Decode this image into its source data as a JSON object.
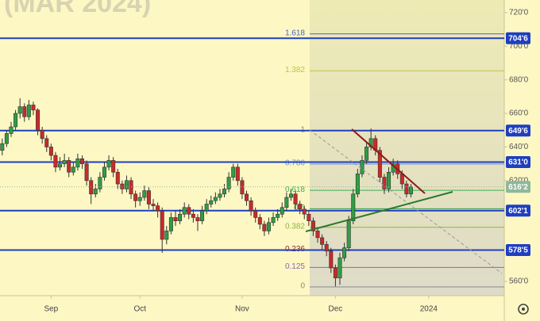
{
  "chart_data": {
    "type": "candlestick",
    "title": "(MAR 2024)",
    "ylim": [
      551.5,
      727.5
    ],
    "yticks": [
      {
        "value": 560,
        "label": "560'0"
      },
      {
        "value": 620,
        "label": "620'0"
      },
      {
        "value": 640,
        "label": "640'0"
      },
      {
        "value": 660,
        "label": "660'0"
      },
      {
        "value": 680,
        "label": "680'0"
      },
      {
        "value": 700,
        "label": "700'0"
      },
      {
        "value": 720,
        "label": "720'0"
      }
    ],
    "xlim": [
      -0.5,
      113
    ],
    "xticks": [
      {
        "value": 11,
        "label": "Sep"
      },
      {
        "value": 31,
        "label": "Oct"
      },
      {
        "value": 54,
        "label": "Nov"
      },
      {
        "value": 75,
        "label": "Dec"
      },
      {
        "value": 96,
        "label": "2024"
      }
    ],
    "up_color": "#2f9e44",
    "down_color": "#c92a2a",
    "candles": [
      [
        638,
        645,
        635,
        642
      ],
      [
        642,
        650,
        640,
        648
      ],
      [
        648,
        655,
        646,
        652
      ],
      [
        652,
        662,
        650,
        660
      ],
      [
        660,
        669,
        657,
        664
      ],
      [
        664,
        666,
        655,
        658
      ],
      [
        658,
        668,
        656,
        665
      ],
      [
        665,
        667,
        659,
        662
      ],
      [
        662,
        663,
        647,
        650
      ],
      [
        650,
        652,
        642,
        645
      ],
      [
        645,
        647,
        637,
        640
      ],
      [
        640,
        642,
        632,
        635
      ],
      [
        635,
        637,
        625,
        628
      ],
      [
        628,
        634,
        626,
        630
      ],
      [
        630,
        636,
        628,
        632
      ],
      [
        632,
        634,
        622,
        625
      ],
      [
        625,
        631,
        623,
        628
      ],
      [
        628,
        636,
        626,
        633
      ],
      [
        633,
        635,
        627,
        630
      ],
      [
        630,
        632,
        617,
        620
      ],
      [
        620,
        622,
        606,
        612
      ],
      [
        612,
        618,
        610,
        615
      ],
      [
        615,
        625,
        613,
        622
      ],
      [
        622,
        631,
        620,
        628
      ],
      [
        628,
        635,
        626,
        632
      ],
      [
        632,
        634,
        622,
        625
      ],
      [
        625,
        627,
        615,
        618
      ],
      [
        618,
        620,
        612,
        615
      ],
      [
        615,
        623,
        613,
        620
      ],
      [
        620,
        622,
        609,
        612
      ],
      [
        612,
        614,
        604,
        608
      ],
      [
        608,
        613,
        605,
        610
      ],
      [
        610,
        617,
        608,
        614
      ],
      [
        614,
        616,
        603,
        606
      ],
      [
        606,
        609,
        602,
        605
      ],
      [
        605,
        607,
        598,
        602
      ],
      [
        602,
        604,
        577,
        585
      ],
      [
        585,
        593,
        582,
        590
      ],
      [
        590,
        601,
        588,
        598
      ],
      [
        598,
        602,
        593,
        596
      ],
      [
        596,
        603,
        594,
        600
      ],
      [
        600,
        607,
        598,
        604
      ],
      [
        604,
        606,
        597,
        600
      ],
      [
        600,
        603,
        595,
        598
      ],
      [
        598,
        600,
        590,
        596
      ],
      [
        596,
        605,
        594,
        602
      ],
      [
        602,
        609,
        600,
        606
      ],
      [
        606,
        611,
        604,
        608
      ],
      [
        608,
        613,
        606,
        610
      ],
      [
        610,
        615,
        608,
        612
      ],
      [
        612,
        618,
        610,
        615
      ],
      [
        615,
        625,
        613,
        622
      ],
      [
        622,
        630,
        620,
        628
      ],
      [
        628,
        630,
        617,
        620
      ],
      [
        620,
        622,
        609,
        612
      ],
      [
        612,
        614,
        605,
        608
      ],
      [
        608,
        610,
        599,
        602
      ],
      [
        602,
        604,
        595,
        598
      ],
      [
        598,
        600,
        591,
        594
      ],
      [
        594,
        596,
        587,
        590
      ],
      [
        590,
        598,
        588,
        595
      ],
      [
        595,
        601,
        593,
        598
      ],
      [
        598,
        603,
        596,
        600
      ],
      [
        600,
        607,
        598,
        604
      ],
      [
        604,
        613,
        602,
        610
      ],
      [
        610,
        615,
        608,
        612
      ],
      [
        612,
        614,
        603,
        606
      ],
      [
        606,
        608,
        600,
        603
      ],
      [
        603,
        605,
        597,
        600
      ],
      [
        600,
        602,
        593,
        596
      ],
      [
        596,
        598,
        587,
        590
      ],
      [
        590,
        592,
        583,
        586
      ],
      [
        586,
        588,
        579,
        582
      ],
      [
        582,
        584,
        575,
        578
      ],
      [
        578,
        580,
        565,
        568
      ],
      [
        568,
        570,
        557,
        562
      ],
      [
        562,
        577,
        558,
        574
      ],
      [
        574,
        583,
        572,
        580
      ],
      [
        580,
        599,
        578,
        596
      ],
      [
        596,
        615,
        594,
        612
      ],
      [
        612,
        627,
        610,
        624
      ],
      [
        624,
        635,
        622,
        632
      ],
      [
        632,
        643,
        630,
        640
      ],
      [
        640,
        651,
        638,
        645
      ],
      [
        645,
        647,
        635,
        638
      ],
      [
        638,
        640,
        619,
        622
      ],
      [
        622,
        624,
        612,
        615
      ],
      [
        615,
        628,
        613,
        625
      ],
      [
        625,
        633,
        623,
        630
      ],
      [
        630,
        632,
        621,
        624
      ],
      [
        624,
        626,
        615,
        618
      ],
      [
        618,
        620,
        610,
        612
      ],
      [
        612,
        618,
        610,
        616.25
      ]
    ],
    "levels": [
      {
        "value": 704.75,
        "label": "704'6"
      },
      {
        "value": 649.75,
        "label": "649'6"
      },
      {
        "value": 631,
        "label": "631'0"
      },
      {
        "value": 602.125,
        "label": "602'1"
      },
      {
        "value": 578.625,
        "label": "578'5"
      }
    ],
    "level_color": "#1f3fbf",
    "last_price": {
      "value": 616.25,
      "label": "616'2"
    },
    "last_price_color": "#8fb89a",
    "fib": [
      {
        "ratio": 1.618,
        "price": 707.3,
        "color": "#4a63c8"
      },
      {
        "ratio": 1.382,
        "price": 685.3,
        "color": "#b7c83f"
      },
      {
        "ratio": 1,
        "price": 649.75,
        "color": "#8a8a8a"
      },
      {
        "ratio": 0.786,
        "price": 629.8,
        "color": "#6a8fe0"
      },
      {
        "ratio": 0.618,
        "price": 614.2,
        "color": "#3fae55"
      },
      {
        "ratio": 0.5,
        "price": 603.2,
        "color": "#2f9e44"
      },
      {
        "ratio": 0.382,
        "price": 592.2,
        "color": "#8cb83a"
      },
      {
        "ratio": 0.236,
        "price": 578.7,
        "color": "#8e2a2a"
      },
      {
        "ratio": 0.125,
        "price": 568.3,
        "color": "#8a6aa8"
      },
      {
        "ratio": 0,
        "price": 556.7,
        "color": "#8a8a8a"
      }
    ]
  }
}
